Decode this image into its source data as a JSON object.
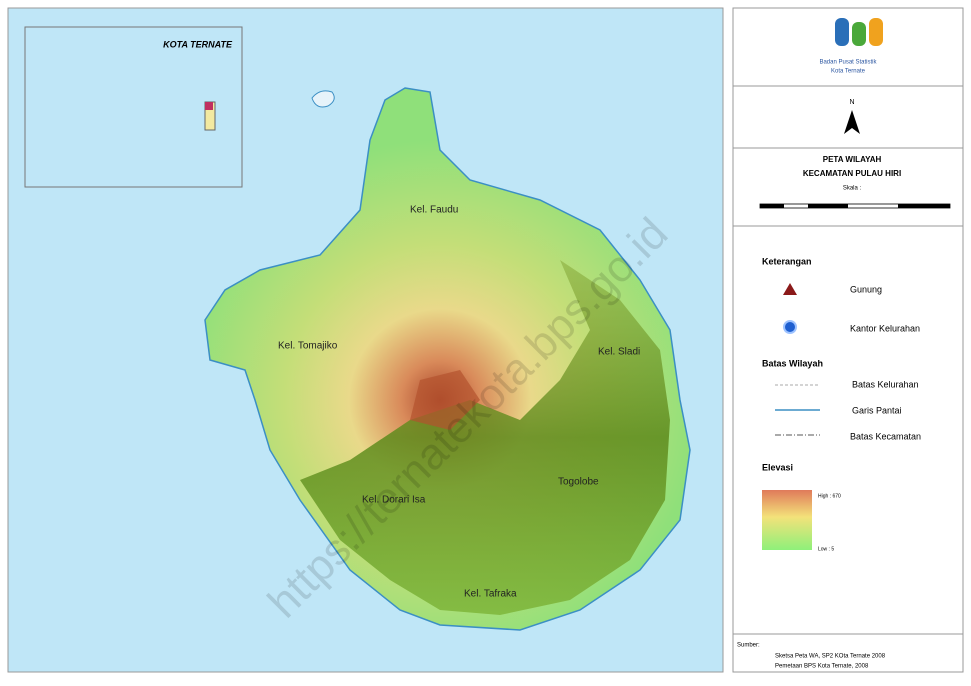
{
  "inset": {
    "title": "KOTA TERNATE"
  },
  "logo": {
    "line1": "Badan Pusat Statistik",
    "line2": "Kota Ternate"
  },
  "north": "N",
  "title": {
    "line1": "PETA WILAYAH",
    "line2": "KECAMATAN PULAU HIRI",
    "scale": "Skala :"
  },
  "labels": [
    "Kel. Faudu",
    "Kel. Tomajiko",
    "Kel. Sladi",
    "Kel. Dorari Isa",
    "Togolobe",
    "Kel. Tafraka"
  ],
  "legend": {
    "heading": "Keterangan",
    "items": [
      "Gunung",
      "Kantor Kelurahan"
    ],
    "boundary_heading": "Batas Wilayah",
    "boundaries": [
      "Batas Kelurahan",
      "Garis Pantai",
      "Batas Kecamatan"
    ],
    "elevation_heading": "Elevasi",
    "high": "High : 670",
    "low": "Low : 5"
  },
  "source": {
    "heading": "Sumber:",
    "line1": "Sketsa Peta WA, SP2 KOta Ternate 2008",
    "line2": "Pemetaan BPS Kota Ternate, 2008"
  },
  "watermark": "https://ternatekota.bps.go.id"
}
